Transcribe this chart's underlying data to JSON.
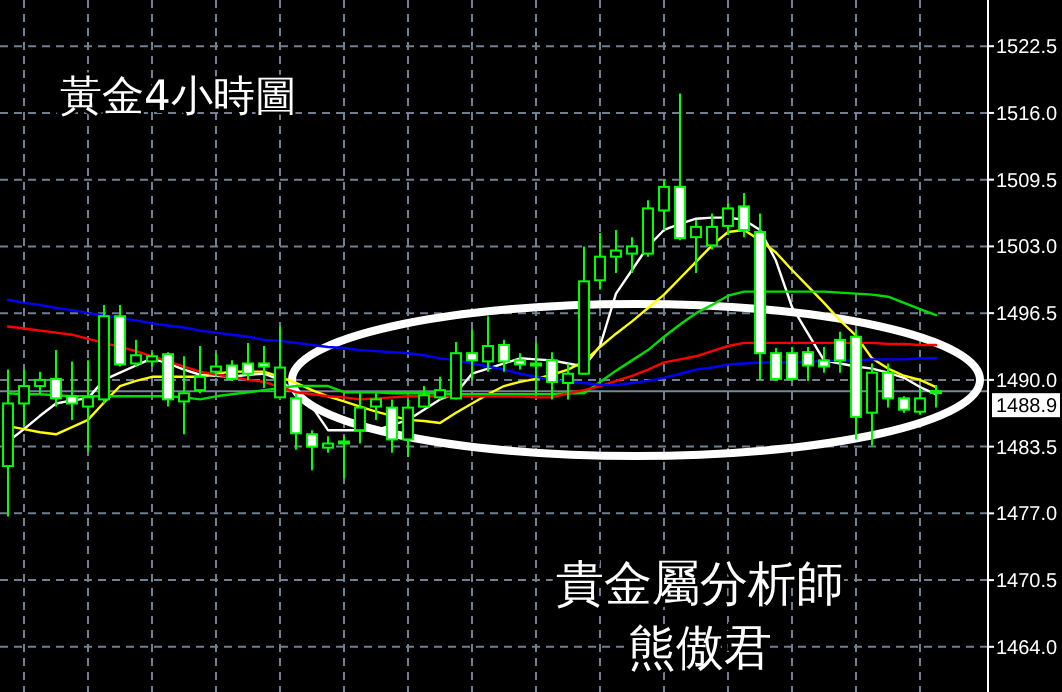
{
  "chart_data": {
    "type": "candlestick",
    "title": "黃金4小時圖",
    "annotations": [
      "貴金屬分析師",
      "熊傲君"
    ],
    "categories": [
      null,
      null,
      null,
      null,
      null,
      null,
      null,
      null,
      null,
      null,
      null,
      null,
      null,
      null,
      null,
      null,
      null,
      null,
      null,
      null,
      null,
      null,
      null,
      null,
      null,
      null,
      null,
      null,
      null,
      null,
      null,
      null,
      null,
      null,
      null,
      null,
      null,
      null,
      null,
      null,
      null,
      null,
      null,
      null,
      null,
      null,
      null,
      null,
      null,
      null,
      null,
      null,
      null,
      null,
      null,
      null,
      null,
      null,
      null
    ],
    "ohlc": [
      [
        1481.6,
        1491.0,
        1476.7,
        1487.7
      ],
      [
        1487.7,
        1491.0,
        1485.5,
        1489.4
      ],
      [
        1489.4,
        1490.8,
        1488.7,
        1490.0
      ],
      [
        1490.1,
        1492.9,
        1487.4,
        1488.2
      ],
      [
        1488.4,
        1491.8,
        1486.1,
        1487.7
      ],
      [
        1487.4,
        1491.9,
        1483.0,
        1488.3
      ],
      [
        1488.1,
        1497.3,
        1487.7,
        1496.2
      ],
      [
        1496.2,
        1497.3,
        1491.3,
        1491.5
      ],
      [
        1491.6,
        1493.9,
        1491.3,
        1492.4
      ],
      [
        1491.8,
        1492.7,
        1491.3,
        1492.3
      ],
      [
        1492.5,
        1492.7,
        1487.4,
        1488.1
      ],
      [
        1487.9,
        1492.3,
        1484.7,
        1488.7
      ],
      [
        1489.0,
        1493.3,
        1488.7,
        1490.3
      ],
      [
        1490.8,
        1492.6,
        1490.3,
        1491.3
      ],
      [
        1491.4,
        1491.9,
        1489.9,
        1490.1
      ],
      [
        1491.6,
        1493.6,
        1490.0,
        1490.6
      ],
      [
        1491.6,
        1493.3,
        1489.2,
        1491.3
      ],
      [
        1488.3,
        1495.2,
        1488.3,
        1491.2
      ],
      [
        1488.2,
        1488.7,
        1483.2,
        1484.8
      ],
      [
        1484.7,
        1485.1,
        1481.2,
        1483.5
      ],
      [
        1483.4,
        1484.5,
        1482.9,
        1483.8
      ],
      [
        1484.0,
        1484.5,
        1480.4,
        1484.0
      ],
      [
        1485.1,
        1488.7,
        1483.8,
        1487.3
      ],
      [
        1487.4,
        1488.7,
        1486.1,
        1488.1
      ],
      [
        1487.3,
        1488.1,
        1482.9,
        1484.2
      ],
      [
        1484.2,
        1488.1,
        1482.5,
        1487.3
      ],
      [
        1487.4,
        1489.4,
        1487.4,
        1488.5
      ],
      [
        1488.3,
        1490.3,
        1488.1,
        1489.0
      ],
      [
        1488.2,
        1493.7,
        1488.1,
        1492.6
      ],
      [
        1492.6,
        1494.9,
        1490.0,
        1491.9
      ],
      [
        1491.8,
        1496.2,
        1490.8,
        1493.3
      ],
      [
        1493.4,
        1493.9,
        1490.8,
        1491.8
      ],
      [
        1491.9,
        1492.6,
        1491.0,
        1491.5
      ],
      [
        1491.6,
        1493.6,
        1488.7,
        1491.4
      ],
      [
        1491.9,
        1492.7,
        1488.1,
        1489.8
      ],
      [
        1489.7,
        1491.6,
        1488.1,
        1490.6
      ],
      [
        1490.6,
        1503.0,
        1490.5,
        1499.6
      ],
      [
        1499.7,
        1504.3,
        1498.8,
        1502.0
      ],
      [
        1502.0,
        1504.6,
        1500.4,
        1502.6
      ],
      [
        1502.3,
        1503.9,
        1500.4,
        1503.0
      ],
      [
        1502.3,
        1507.5,
        1502.0,
        1506.7
      ],
      [
        1506.5,
        1509.5,
        1504.6,
        1508.8
      ],
      [
        1508.8,
        1517.9,
        1503.6,
        1503.8
      ],
      [
        1503.9,
        1505.6,
        1500.4,
        1504.9
      ],
      [
        1503.1,
        1506.2,
        1502.7,
        1504.9
      ],
      [
        1505.0,
        1507.2,
        1504.1,
        1506.7
      ],
      [
        1506.9,
        1508.2,
        1503.9,
        1504.6
      ],
      [
        1504.4,
        1506.2,
        1490.0,
        1492.6
      ],
      [
        1492.6,
        1493.1,
        1489.9,
        1490.1
      ],
      [
        1492.6,
        1493.2,
        1489.9,
        1490.1
      ],
      [
        1492.7,
        1493.2,
        1489.9,
        1491.4
      ],
      [
        1491.9,
        1493.2,
        1490.7,
        1491.3
      ],
      [
        1493.9,
        1494.7,
        1490.7,
        1491.9
      ],
      [
        1494.2,
        1494.9,
        1484.2,
        1486.4
      ],
      [
        1486.8,
        1491.6,
        1483.6,
        1490.7
      ],
      [
        1490.7,
        1491.6,
        1487.3,
        1488.2
      ],
      [
        1488.2,
        1488.4,
        1486.8,
        1487.1
      ],
      [
        1486.9,
        1489.2,
        1486.6,
        1488.2
      ],
      [
        1488.7,
        1489.5,
        1487.3,
        1488.9
      ]
    ],
    "series": [
      {
        "type": "line",
        "color": "#ffffff",
        "values": [
          1484.0,
          1485.2,
          1486.5,
          1487.7,
          1488.0,
          1488.2,
          1490.0,
          1490.7,
          1491.4,
          1492.1,
          1491.6,
          1491.0,
          1490.5,
          1490.4,
          1490.3,
          1490.5,
          1490.6,
          1490.0,
          1488.7,
          1487.4,
          1485.1,
          1485.1,
          1485.1,
          1485.1,
          1485.6,
          1486.1,
          1487.1,
          1488.1,
          1488.7,
          1490.6,
          1491.1,
          1491.6,
          1492.1,
          1492.0,
          1491.9,
          1491.6,
          1491.3,
          1493.3,
          1498.4,
          1500.7,
          1503.0,
          1504.6,
          1505.2,
          1505.7,
          1505.8,
          1505.8,
          1505.6,
          1504.6,
          1501.6,
          1497.1,
          1494.5,
          1491.9,
          1491.6,
          1491.3,
          1491.1,
          1490.7,
          1490.2,
          1489.3,
          1488.6
        ]
      },
      {
        "type": "line",
        "color": "#ffff00",
        "values": [
          1485.5,
          1485.2,
          1484.9,
          1484.7,
          1485.4,
          1486.1,
          1487.8,
          1489.4,
          1489.9,
          1490.3,
          1490.3,
          1490.3,
          1490.3,
          1490.6,
          1490.8,
          1490.8,
          1490.8,
          1490.3,
          1489.7,
          1489.0,
          1488.4,
          1487.9,
          1487.4,
          1486.9,
          1486.5,
          1486.1,
          1486.0,
          1485.8,
          1486.8,
          1487.7,
          1488.6,
          1489.4,
          1489.8,
          1490.1,
          1490.5,
          1491.0,
          1491.8,
          1493.2,
          1494.5,
          1495.7,
          1497.0,
          1498.3,
          1499.9,
          1501.5,
          1503.1,
          1504.4,
          1504.6,
          1503.6,
          1502.4,
          1500.7,
          1499.1,
          1497.5,
          1495.8,
          1494.3,
          1492.1,
          1491.1,
          1490.4,
          1490.0,
          1489.3
        ]
      },
      {
        "type": "line",
        "color": "#00dd00",
        "values": [
          1488.7,
          1488.6,
          1488.6,
          1488.5,
          1488.4,
          1488.4,
          1488.4,
          1488.4,
          1488.4,
          1488.4,
          1488.4,
          1488.3,
          1488.1,
          1488.4,
          1488.6,
          1488.8,
          1489.0,
          1489.2,
          1489.4,
          1489.4,
          1489.4,
          1488.8,
          1488.8,
          1488.8,
          1488.7,
          1488.7,
          1488.7,
          1488.7,
          1488.6,
          1488.6,
          1488.6,
          1488.6,
          1488.6,
          1488.6,
          1488.6,
          1488.7,
          1488.7,
          1489.8,
          1490.9,
          1491.9,
          1492.9,
          1494.2,
          1495.4,
          1496.5,
          1497.3,
          1498.2,
          1498.6,
          1498.6,
          1498.6,
          1498.6,
          1498.6,
          1498.6,
          1498.5,
          1498.4,
          1498.3,
          1498.1,
          1497.5,
          1496.9,
          1496.3
        ]
      },
      {
        "type": "line",
        "color": "#ff0000",
        "values": [
          1495.2,
          1495.0,
          1494.8,
          1494.6,
          1494.4,
          1494.0,
          1493.6,
          1493.2,
          1492.8,
          1492.3,
          1491.8,
          1491.3,
          1490.8,
          1490.5,
          1490.3,
          1490.0,
          1489.8,
          1489.3,
          1488.8,
          1488.6,
          1488.4,
          1488.3,
          1488.1,
          1488.2,
          1488.3,
          1488.4,
          1488.4,
          1488.4,
          1488.4,
          1488.4,
          1488.4,
          1488.4,
          1488.4,
          1488.3,
          1488.3,
          1488.7,
          1489.0,
          1489.4,
          1489.9,
          1490.4,
          1491.0,
          1491.7,
          1492.0,
          1492.3,
          1492.8,
          1493.3,
          1493.6,
          1493.6,
          1493.6,
          1493.6,
          1493.6,
          1493.6,
          1493.6,
          1493.6,
          1493.6,
          1493.5,
          1493.5,
          1493.4,
          1493.4
        ]
      },
      {
        "type": "line",
        "color": "#0000ff",
        "values": [
          1497.8,
          1497.5,
          1497.3,
          1497.0,
          1496.8,
          1496.5,
          1496.3,
          1496.0,
          1495.8,
          1495.5,
          1495.3,
          1495.1,
          1494.8,
          1494.6,
          1494.4,
          1494.2,
          1493.9,
          1493.8,
          1493.6,
          1493.4,
          1493.2,
          1493.1,
          1492.9,
          1492.8,
          1492.7,
          1492.6,
          1492.4,
          1492.1,
          1491.9,
          1491.6,
          1491.3,
          1491.0,
          1490.6,
          1490.3,
          1490.0,
          1489.8,
          1489.7,
          1489.5,
          1489.5,
          1489.7,
          1489.9,
          1490.2,
          1490.6,
          1491.0,
          1491.2,
          1491.5,
          1491.6,
          1491.7,
          1491.7,
          1491.7,
          1491.8,
          1491.8,
          1491.9,
          1491.9,
          1492.0,
          1492.0,
          1492.0,
          1492.1,
          1492.1
        ]
      }
    ],
    "ylim": [
      1459.6,
      1527.0
    ],
    "yticks": [
      {
        "value": 1464,
        "label": "1464.0"
      },
      {
        "value": 1470.5,
        "label": "1470.5"
      },
      {
        "value": 1477,
        "label": "1477.0"
      },
      {
        "value": 1483.5,
        "label": "1483.5"
      },
      {
        "value": 1490,
        "label": "1490.0"
      },
      {
        "value": 1496.5,
        "label": "1496.5"
      },
      {
        "value": 1503,
        "label": "1503.0"
      },
      {
        "value": 1509.5,
        "label": "1509.5"
      },
      {
        "value": 1516,
        "label": "1516.0"
      },
      {
        "value": 1522.5,
        "label": "1522.5"
      }
    ],
    "ref_lines": [
      {
        "axis": "y",
        "value": 1488.9,
        "label": "1488.9",
        "color": "#778899"
      }
    ],
    "grid": true,
    "tick_labels": "y"
  }
}
